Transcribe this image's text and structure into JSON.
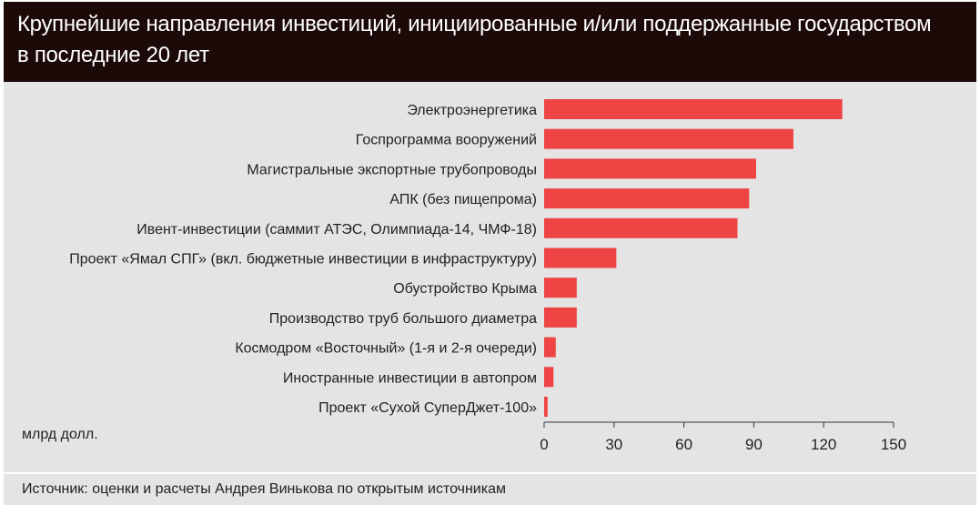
{
  "header": {
    "title_line1": "Крупнейшие направления инвестиций, инициированные и/или поддержанные государством",
    "title_line2": "в последние 20 лет"
  },
  "footer": {
    "source": "Источник: оценки и расчеты Андрея Винькова по открытым источникам"
  },
  "colors": {
    "bar": "#ee4444",
    "header_bg": "#1c0a08",
    "panel_bg": "#e4e4e4"
  },
  "chart_data": {
    "type": "bar",
    "orientation": "horizontal",
    "title": "Крупнейшие направления инвестиций, инициированные и/или поддержанные государством в последние 20 лет",
    "unit_label": "млрд долл.",
    "categories": [
      "Электроэнергетика",
      "Госпрограмма вооружений",
      "Магистральные экспортные трубопроводы",
      "АПК (без пищепрома)",
      "Ивент-инвестиции (саммит АТЭС, Олимпиада-14, ЧМФ-18)",
      "Проект «Ямал СПГ» (вкл. бюджетные инвестиции в инфраструктуру)",
      "Обустройство Крыма",
      "Производство труб большого диаметра",
      "Космодром «Восточный» (1-я и 2-я очереди)",
      "Иностранные инвестиции в автопром",
      "Проект «Сухой СуперДжет-100»"
    ],
    "values": [
      128,
      107,
      91,
      88,
      83,
      31,
      14,
      14,
      5,
      4,
      1.5
    ],
    "xlim": [
      0,
      150
    ],
    "xticks": [
      0,
      30,
      60,
      90,
      120,
      150
    ],
    "grid": false,
    "legend": "none"
  }
}
